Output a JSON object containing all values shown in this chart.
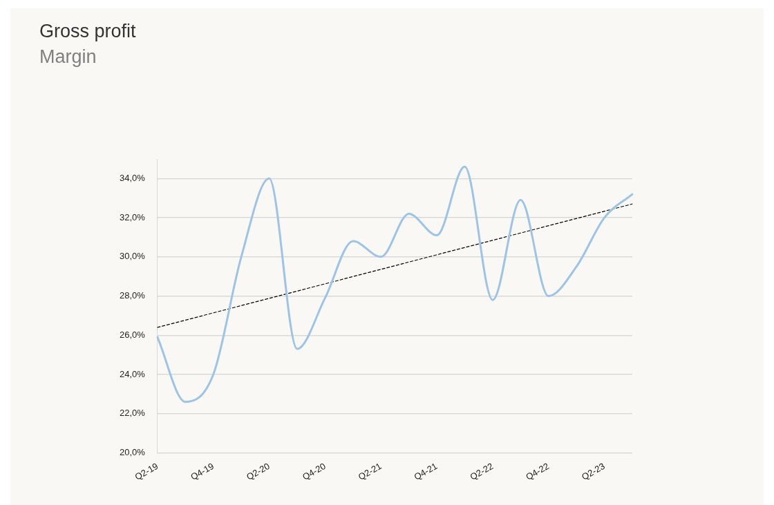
{
  "chart_data": {
    "type": "line",
    "title": "Gross profit",
    "subtitle": "Margin",
    "categories": [
      "Q2-19",
      null,
      "Q4-19",
      null,
      "Q2-20",
      null,
      "Q4-20",
      null,
      "Q2-21",
      null,
      "Q4-21",
      null,
      "Q2-22",
      null,
      "Q4-22",
      null,
      "Q2-23",
      null
    ],
    "series": [
      {
        "color": "#9dc3e6",
        "values": [
          25.9,
          22.6,
          24.0,
          30.0,
          34.0,
          25.3,
          27.9,
          30.8,
          30.0,
          32.2,
          31.1,
          34.6,
          27.8,
          32.9,
          28.0,
          29.5,
          32.0,
          33.2
        ]
      },
      {
        "type": "line",
        "color": "#000000",
        "line_style": "dashed",
        "values": [
          26.4,
          null,
          null,
          null,
          null,
          null,
          null,
          null,
          null,
          null,
          null,
          null,
          null,
          null,
          null,
          null,
          null,
          32.7
        ]
      }
    ],
    "ylim": [
      20,
      35
    ],
    "yticks": [
      {
        "value": 20,
        "label": "20,0%"
      },
      {
        "value": 22,
        "label": "22,0%"
      },
      {
        "value": 24,
        "label": "24,0%"
      },
      {
        "value": 26,
        "label": "26,0%"
      },
      {
        "value": 28,
        "label": "28,0%"
      },
      {
        "value": 30,
        "label": "30,0%"
      },
      {
        "value": 32,
        "label": "32,0%"
      },
      {
        "value": 34,
        "label": "34,0%"
      }
    ],
    "grid": "y",
    "legend": false,
    "marker": "none",
    "line_style": "solid"
  }
}
